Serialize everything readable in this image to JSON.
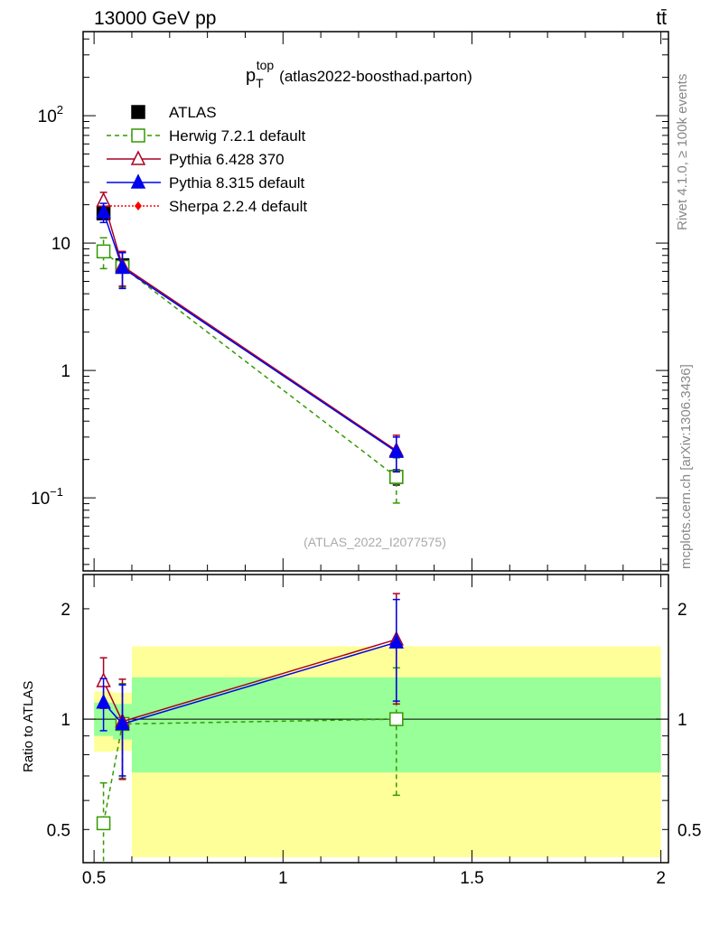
{
  "header": {
    "left": "13000 GeV pp",
    "right": "tt̄"
  },
  "side_labels": {
    "rivet": "Rivet 4.1.0, ≥ 100k events",
    "mcplots": "mcplots.cern.ch [arXiv:1306.3436]"
  },
  "chart_data": [
    {
      "type": "line",
      "title": "p_T^top (atlas2022-boosthad.parton)",
      "title_main": "p",
      "title_sub": "T",
      "title_sup": "top",
      "title_rest": "(atlas2022-boosthad.parton)",
      "watermark": "(ATLAS_2022_I2077575)",
      "yscale": "log",
      "xlim": [
        0.471,
        2.02
      ],
      "ylim": [
        0.0267,
        457
      ],
      "yticks": [
        {
          "v": 100,
          "b": "10",
          "e": "2"
        },
        {
          "v": 10,
          "b": "10",
          "e": ""
        },
        {
          "v": 1,
          "b": "1",
          "e": ""
        },
        {
          "v": 0.1,
          "b": "10",
          "e": "−1"
        }
      ],
      "legend_position": "top-left",
      "series": [
        {
          "name": "ATLAS",
          "color": "#000000",
          "marker": "square-filled",
          "x": [
            0.525,
            0.575,
            1.3
          ],
          "y": [
            17.1,
            6.7,
            0.146
          ],
          "err_lo": [
            1.3,
            0.5,
            0.02
          ],
          "err_hi": [
            1.3,
            0.5,
            0.02
          ]
        },
        {
          "name": "Herwig 7.2.1 default",
          "color": "#339900",
          "marker": "square-open",
          "dash": "5,4",
          "x": [
            0.525,
            0.575,
            1.3
          ],
          "y": [
            8.6,
            6.5,
            0.146
          ],
          "err_lo": [
            2.3,
            2.0,
            0.055
          ],
          "err_hi": [
            2.4,
            2.0,
            0.06
          ]
        },
        {
          "name": "Pythia 6.428 370",
          "color": "#aa0022",
          "marker": "triangle-open",
          "x": [
            0.525,
            0.575,
            1.3
          ],
          "y": [
            21.5,
            6.6,
            0.235
          ],
          "err_lo": [
            3.5,
            2.0,
            0.075
          ],
          "err_hi": [
            3.5,
            2.0,
            0.075
          ]
        },
        {
          "name": "Pythia 8.315 default",
          "color": "#0000ee",
          "marker": "triangle-filled",
          "x": [
            0.525,
            0.575,
            1.3
          ],
          "y": [
            17.5,
            6.4,
            0.23
          ],
          "err_lo": [
            3.0,
            2.0,
            0.07
          ],
          "err_hi": [
            3.0,
            2.0,
            0.07
          ]
        },
        {
          "name": "Sherpa 2.2.4 default",
          "color": "#ff0000",
          "marker": "diamond-filled",
          "dash": "2,2",
          "x": [],
          "y": [],
          "err_lo": [],
          "err_hi": []
        }
      ]
    },
    {
      "type": "line",
      "ylabel": "Ratio to ATLAS",
      "yscale": "log",
      "xlim": [
        0.471,
        2.02
      ],
      "ylim": [
        0.406,
        2.48
      ],
      "yticks": [
        2,
        1,
        0.5
      ],
      "xticks": [
        0.5,
        1,
        1.5,
        2
      ],
      "xtick_labels": [
        "0.5",
        "1",
        "1.5",
        "2"
      ],
      "bins": [
        [
          0.5,
          0.55
        ],
        [
          0.55,
          0.6
        ],
        [
          0.6,
          2.0
        ]
      ],
      "band_total": [
        [
          0.815,
          1.19
        ],
        [
          0.82,
          1.18
        ],
        [
          0.42,
          1.58
        ]
      ],
      "band_stat": [
        [
          0.9,
          1.11
        ],
        [
          0.88,
          1.1
        ],
        [
          0.715,
          1.3
        ]
      ],
      "series": [
        {
          "name": "Herwig 7.2.1 default",
          "color": "#339900",
          "marker": "square-open",
          "dash": "5,4",
          "x": [
            0.525,
            0.575,
            1.3
          ],
          "y": [
            0.52,
            0.97,
            1.0
          ],
          "err_lo": [
            0.15,
            0.28,
            0.38
          ],
          "err_hi": [
            0.15,
            0.28,
            0.38
          ]
        },
        {
          "name": "Pythia 6.428 370",
          "color": "#aa0022",
          "marker": "triangle-open",
          "x": [
            0.525,
            0.575,
            1.3
          ],
          "y": [
            1.27,
            0.985,
            1.65
          ],
          "err_lo": [
            0.2,
            0.3,
            0.55
          ],
          "err_hi": [
            0.2,
            0.3,
            0.55
          ]
        },
        {
          "name": "Pythia 8.315 default",
          "color": "#0000ee",
          "marker": "triangle-filled",
          "x": [
            0.525,
            0.575,
            1.3
          ],
          "y": [
            1.11,
            0.97,
            1.62
          ],
          "err_lo": [
            0.18,
            0.27,
            0.5
          ],
          "err_hi": [
            0.18,
            0.27,
            0.5
          ]
        }
      ]
    }
  ]
}
